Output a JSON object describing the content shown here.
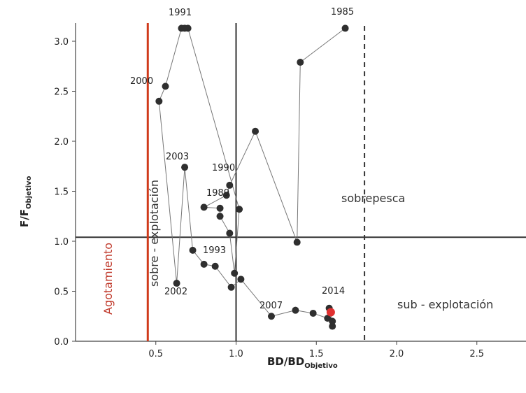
{
  "chart_data": {
    "type": "scatter",
    "title": "",
    "xlabel": "BD/BD",
    "xlabel_sub": "Objetivo",
    "ylabel": "F/F",
    "ylabel_sub": "Objetivo",
    "xlim": [
      0,
      2.8
    ],
    "ylim": [
      0,
      3.2
    ],
    "x_ticks": [
      "0.5",
      "1.0",
      "1.5",
      "2.0",
      "2.5"
    ],
    "y_ticks": [
      "0.0",
      "0.5",
      "1.0",
      "1.5",
      "2.0",
      "2.5",
      "3.0"
    ],
    "grid": false,
    "reference_lines": {
      "f_target": 1.04,
      "bd_limit": 0.45,
      "bd_target": 1.0,
      "bd_upper": 1.8
    },
    "region_labels": {
      "depletion": "Agotamiento",
      "overexploitation": "sobre - explotación",
      "overfishing": "sobrepesca",
      "underexploitation": "sub - explotación"
    },
    "year_labels": [
      "1985",
      "1991",
      "1990",
      "1989",
      "1993",
      "2000",
      "2003",
      "2002",
      "2007",
      "2014"
    ],
    "series": [
      {
        "color": "#2f2f2f",
        "points": [
          [
            1.68,
            3.13
          ],
          [
            1.4,
            2.79
          ],
          [
            1.38,
            0.99
          ],
          [
            1.12,
            2.1
          ],
          [
            0.96,
            1.56
          ],
          [
            0.94,
            1.46
          ],
          [
            0.8,
            1.34
          ],
          [
            0.9,
            1.33
          ],
          [
            0.9,
            1.25
          ],
          [
            0.96,
            1.08
          ],
          [
            0.99,
            0.68
          ],
          [
            1.02,
            1.32
          ],
          [
            0.7,
            3.13
          ],
          [
            0.68,
            3.13
          ],
          [
            0.66,
            3.13
          ],
          [
            0.56,
            2.55
          ],
          [
            0.52,
            2.4
          ],
          [
            0.63,
            0.58
          ],
          [
            0.68,
            1.74
          ],
          [
            0.73,
            0.91
          ],
          [
            0.8,
            0.77
          ],
          [
            0.87,
            0.75
          ],
          [
            0.97,
            0.54
          ],
          [
            1.03,
            0.62
          ],
          [
            1.22,
            0.25
          ],
          [
            1.37,
            0.31
          ],
          [
            1.48,
            0.28
          ],
          [
            1.57,
            0.23
          ],
          [
            1.6,
            0.15
          ],
          [
            1.6,
            0.2
          ],
          [
            1.58,
            0.33
          ]
        ]
      },
      {
        "color": "#e03030",
        "points": [
          [
            1.59,
            0.29
          ]
        ]
      }
    ]
  }
}
